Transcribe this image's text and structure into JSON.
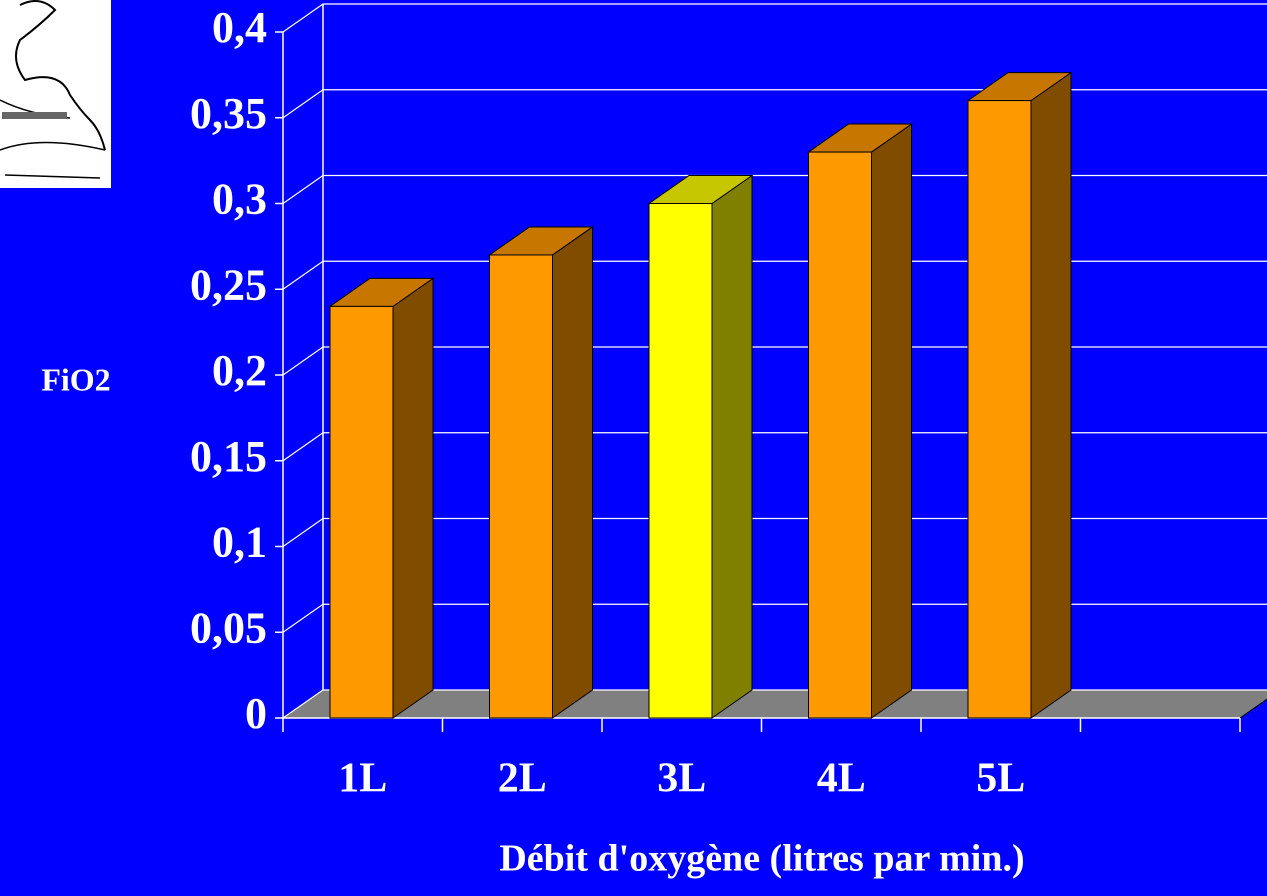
{
  "chart_data": {
    "type": "bar3d",
    "x_label": "Débit d'oxygène (litres par min.)",
    "y_label": "FiO2",
    "categories": [
      "1L",
      "2L",
      "3L",
      "4L",
      "5L",
      null
    ],
    "values": [
      0.24,
      0.27,
      0.3,
      0.33,
      0.36,
      null
    ],
    "colors": [
      "#ff9900",
      "#ff9900",
      "#ffff00",
      "#ff9900",
      "#ff9900",
      null
    ],
    "ylim": [
      0,
      0.4
    ],
    "yticks": [
      0,
      {
        "value": 0.05,
        "label": "0,05"
      },
      {
        "value": 0.1,
        "label": "0,1"
      },
      {
        "value": 0.15,
        "label": "0,15"
      },
      {
        "value": 0.2,
        "label": "0,2"
      },
      {
        "value": 0.25,
        "label": "0,25"
      },
      {
        "value": 0.3,
        "label": "0,3"
      },
      {
        "value": 0.35,
        "label": "0,35"
      },
      {
        "value": 0.4,
        "label": "0,4"
      }
    ],
    "grid": true,
    "background": "#0000ff"
  }
}
